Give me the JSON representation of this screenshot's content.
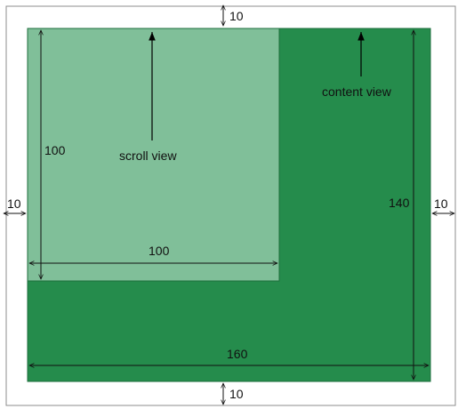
{
  "colors": {
    "outer_border": "#8c8c8c",
    "content_view": "#258c4c",
    "scroll_view": "#80bf99",
    "line": "#111111"
  },
  "labels": {
    "content_view": "content view",
    "scroll_view": "scroll view"
  },
  "dimensions": {
    "top_margin": "10",
    "bottom_margin": "10",
    "left_margin": "10",
    "right_margin": "10",
    "scroll_height": "100",
    "scroll_width": "100",
    "content_height": "140",
    "content_width": "160"
  }
}
